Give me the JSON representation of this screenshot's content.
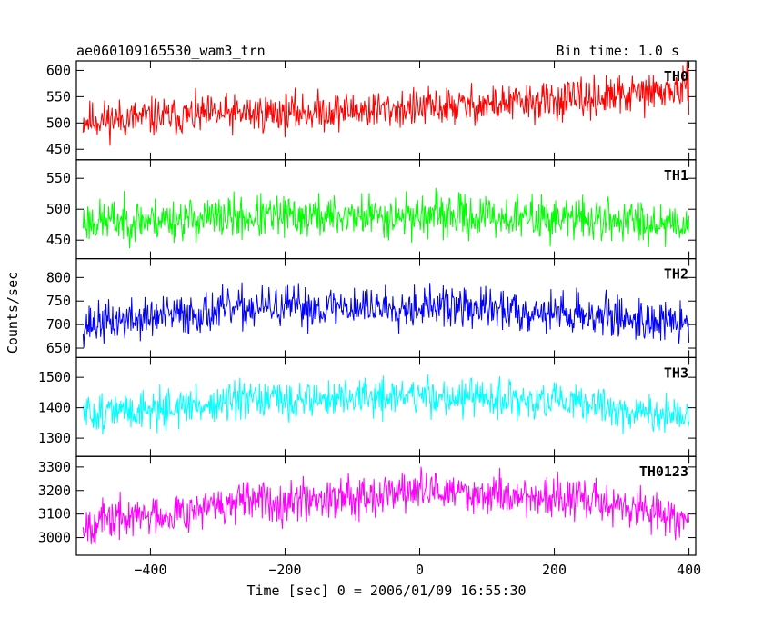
{
  "header": {
    "title": "ae060109165530_wam3_trn",
    "bin_time": "Bin time: 1.0 s"
  },
  "axes": {
    "xlabel": "Time [sec] 0 = 2006/01/09 16:55:30",
    "ylabel": "Counts/sec"
  },
  "chart_data": [
    {
      "type": "line",
      "name": "TH0",
      "color": "#ff0000",
      "xlim": [
        -510,
        410
      ],
      "ylim": [
        430,
        618
      ],
      "x_ticks": [
        -400,
        -200,
        0,
        200,
        400
      ],
      "y_ticks": [
        450,
        500,
        550,
        600
      ],
      "x_range": [
        -500,
        400
      ],
      "trend": {
        "x": [
          -500,
          -250,
          0,
          250,
          400
        ],
        "y": [
          505,
          518,
          528,
          545,
          565
        ]
      },
      "noise_amplitude": 32,
      "seed": 11
    },
    {
      "type": "line",
      "name": "TH1",
      "color": "#00ff00",
      "xlim": [
        -510,
        410
      ],
      "ylim": [
        420,
        580
      ],
      "x_ticks": [
        -400,
        -200,
        0,
        200,
        400
      ],
      "y_ticks": [
        450,
        500,
        550
      ],
      "x_range": [
        -500,
        400
      ],
      "trend": {
        "x": [
          -500,
          -250,
          0,
          250,
          400
        ],
        "y": [
          480,
          487,
          490,
          484,
          478
        ]
      },
      "noise_amplitude": 30,
      "seed": 23
    },
    {
      "type": "line",
      "name": "TH2",
      "color": "#0000ff",
      "xlim": [
        -510,
        410
      ],
      "ylim": [
        630,
        840
      ],
      "x_ticks": [
        -400,
        -200,
        0,
        200,
        400
      ],
      "y_ticks": [
        650,
        700,
        750,
        800
      ],
      "x_range": [
        -500,
        400
      ],
      "trend": {
        "x": [
          -500,
          -250,
          0,
          250,
          400
        ],
        "y": [
          700,
          735,
          740,
          722,
          700
        ]
      },
      "noise_amplitude": 38,
      "seed": 37
    },
    {
      "type": "line",
      "name": "TH3",
      "color": "#00ffff",
      "xlim": [
        -510,
        410
      ],
      "ylim": [
        1240,
        1565
      ],
      "x_ticks": [
        -400,
        -200,
        0,
        200,
        400
      ],
      "y_ticks": [
        1300,
        1400,
        1500
      ],
      "x_range": [
        -500,
        400
      ],
      "trend": {
        "x": [
          -500,
          -250,
          0,
          250,
          400
        ],
        "y": [
          1380,
          1420,
          1440,
          1410,
          1360
        ]
      },
      "noise_amplitude": 55,
      "seed": 51
    },
    {
      "type": "line",
      "name": "TH0123",
      "color": "#ff00ff",
      "xlim": [
        -510,
        410
      ],
      "ylim": [
        2925,
        3345
      ],
      "x_ticks": [
        -400,
        -200,
        0,
        200,
        400
      ],
      "y_ticks": [
        3000,
        3100,
        3200,
        3300
      ],
      "x_range": [
        -500,
        400
      ],
      "trend": {
        "x": [
          -500,
          -250,
          0,
          250,
          400
        ],
        "y": [
          3060,
          3150,
          3200,
          3160,
          3080
        ]
      },
      "noise_amplitude": 75,
      "seed": 67
    }
  ]
}
